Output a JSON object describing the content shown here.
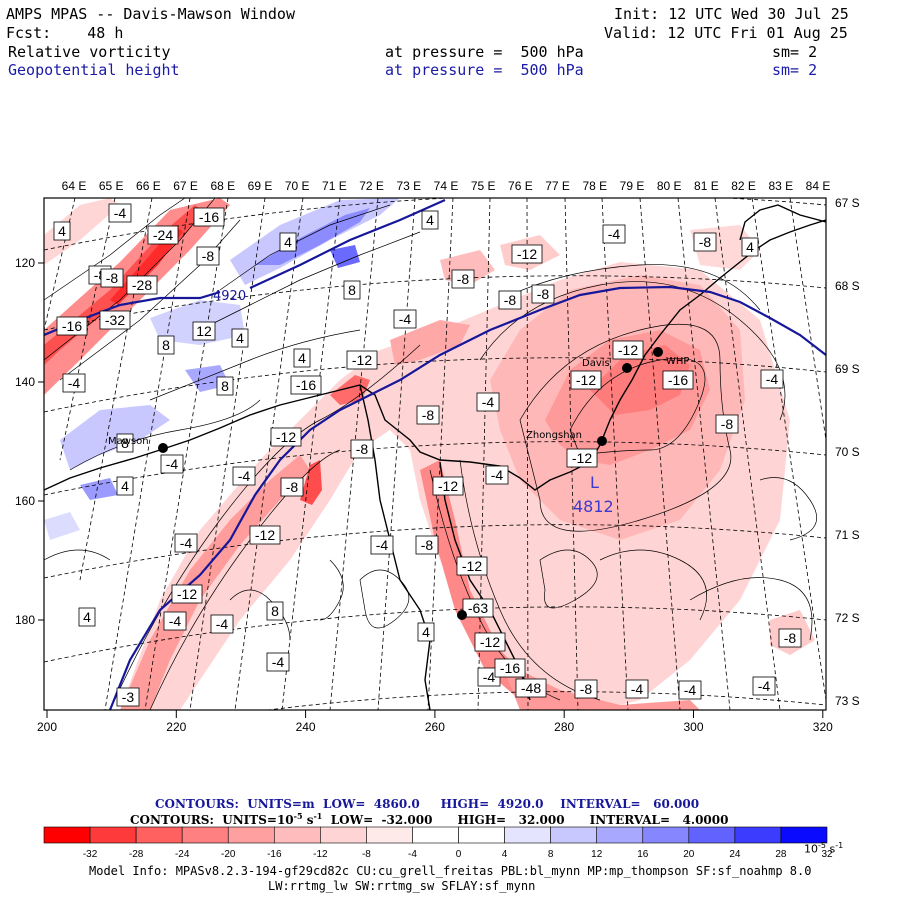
{
  "header": {
    "model_line": "AMPS MPAS -- Davis-Mawson Window",
    "fcst_label": "Fcst:",
    "fcst_value": "48 h",
    "init_label": "Init:",
    "init_value": "12 UTC Wed 30 Jul 25",
    "valid_label": "Valid:",
    "valid_value": "12 UTC Fri 01 Aug 25",
    "field1_name": "Relative vorticity",
    "field1_level": "at pressure =  500 hPa",
    "field1_smooth": "sm= 2",
    "field2_name": "Geopotential height",
    "field2_level": "at pressure =  500 hPa",
    "field2_smooth": "sm= 2"
  },
  "map": {
    "top_lon_labels": [
      "64 E",
      "65 E",
      "66 E",
      "67 E",
      "68 E",
      "69 E",
      "70 E",
      "71 E",
      "72 E",
      "73 E",
      "74 E",
      "75 E",
      "76 E",
      "77 E",
      "78 E",
      "79 E",
      "80 E",
      "81 E",
      "82 E",
      "83 E",
      "84 E"
    ],
    "right_lat_labels": [
      "67 S",
      "68 S",
      "69 S",
      "70 S",
      "71 S",
      "72 S",
      "73 S"
    ],
    "x_ticks": [
      "200",
      "220",
      "240",
      "260",
      "280",
      "300",
      "320"
    ],
    "y_ticks": [
      "120",
      "140",
      "160",
      "180"
    ],
    "stations": [
      "Mawson",
      "Davis",
      "Zhongshan",
      "WHP"
    ],
    "low_marker": "L",
    "low_value": "4812",
    "height_label": "4920",
    "vort_labels": [
      "-4",
      "-16",
      "-24",
      "-28",
      "-32",
      "-16",
      "-8",
      "-8",
      "4",
      "-8",
      "4",
      "8",
      "-12",
      "12",
      "4",
      "4",
      "8",
      "-4",
      "-12",
      "-12",
      "-8",
      "8",
      "-4",
      "-12",
      "-4",
      "-8",
      "-4",
      "-8",
      "-12",
      "-12",
      "-16",
      "-4",
      "4",
      "-8",
      "-12",
      "-8",
      "4",
      "-12",
      "-8",
      "-12",
      "-4",
      "-4",
      "-4",
      "-4",
      "-12",
      "-4",
      "-12",
      "-8",
      "-4",
      "-4",
      "-16",
      "-48",
      "-8",
      "-4",
      "-4",
      "-8",
      "-8",
      "-16",
      "-8",
      "-4",
      "4",
      "8",
      "4",
      "8",
      "-4",
      "-4",
      "4",
      "-3",
      "-63"
    ],
    "colors": {
      "geopotential_line": "#17179a",
      "contour_line": "#000000",
      "coast_line": "#000000"
    }
  },
  "legend": {
    "contours_height_label": "CONTOURS:",
    "contours_height_units": "UNITS=m",
    "contours_height_low": "LOW=  4860.0",
    "contours_height_high": "HIGH=  4920.0",
    "contours_height_interval": "INTERVAL=   60.000",
    "contours_vort_label": "CONTOURS:",
    "contours_vort_units": "UNITS=10",
    "contours_vort_units_exp": "-5",
    "contours_vort_units_tail": " s",
    "contours_vort_units_tail_exp": "-1",
    "contours_vort_low": "LOW=  -32.000",
    "contours_vort_high": "HIGH=   32.000",
    "contours_vort_interval": "INTERVAL=   4.0000",
    "colorbar_labels": [
      "-32",
      "-28",
      "-24",
      "-20",
      "-16",
      "-12",
      "-8",
      "-4",
      "0",
      "4",
      "8",
      "12",
      "16",
      "20",
      "24",
      "28",
      "32"
    ],
    "colorbar_units": "10",
    "colorbar_units_exp": "-5",
    "colorbar_units_tail": " s",
    "colorbar_units_tail_exp": "-1",
    "colorbar_colors": [
      "#ff0000",
      "#ff3a3a",
      "#ff6060",
      "#ff8080",
      "#ffa0a0",
      "#ffbcbc",
      "#ffd4d4",
      "#ffeaea",
      "#ffffff",
      "#ffffff",
      "#e4e4ff",
      "#c8c8ff",
      "#a8a8ff",
      "#8686ff",
      "#6262ff",
      "#3c3cff",
      "#0a0aff"
    ]
  },
  "footer": {
    "model_info_1": "Model Info: MPASv8.2.3-194-gf29cd82c CU:cu_grell_freitas PBL:bl_mynn MP:mp_thompson SF:sf_noahmp 8.0",
    "model_info_2": "LW:rrtmg_lw SW:rrtmg_sw SFLAY:sf_mynn"
  }
}
